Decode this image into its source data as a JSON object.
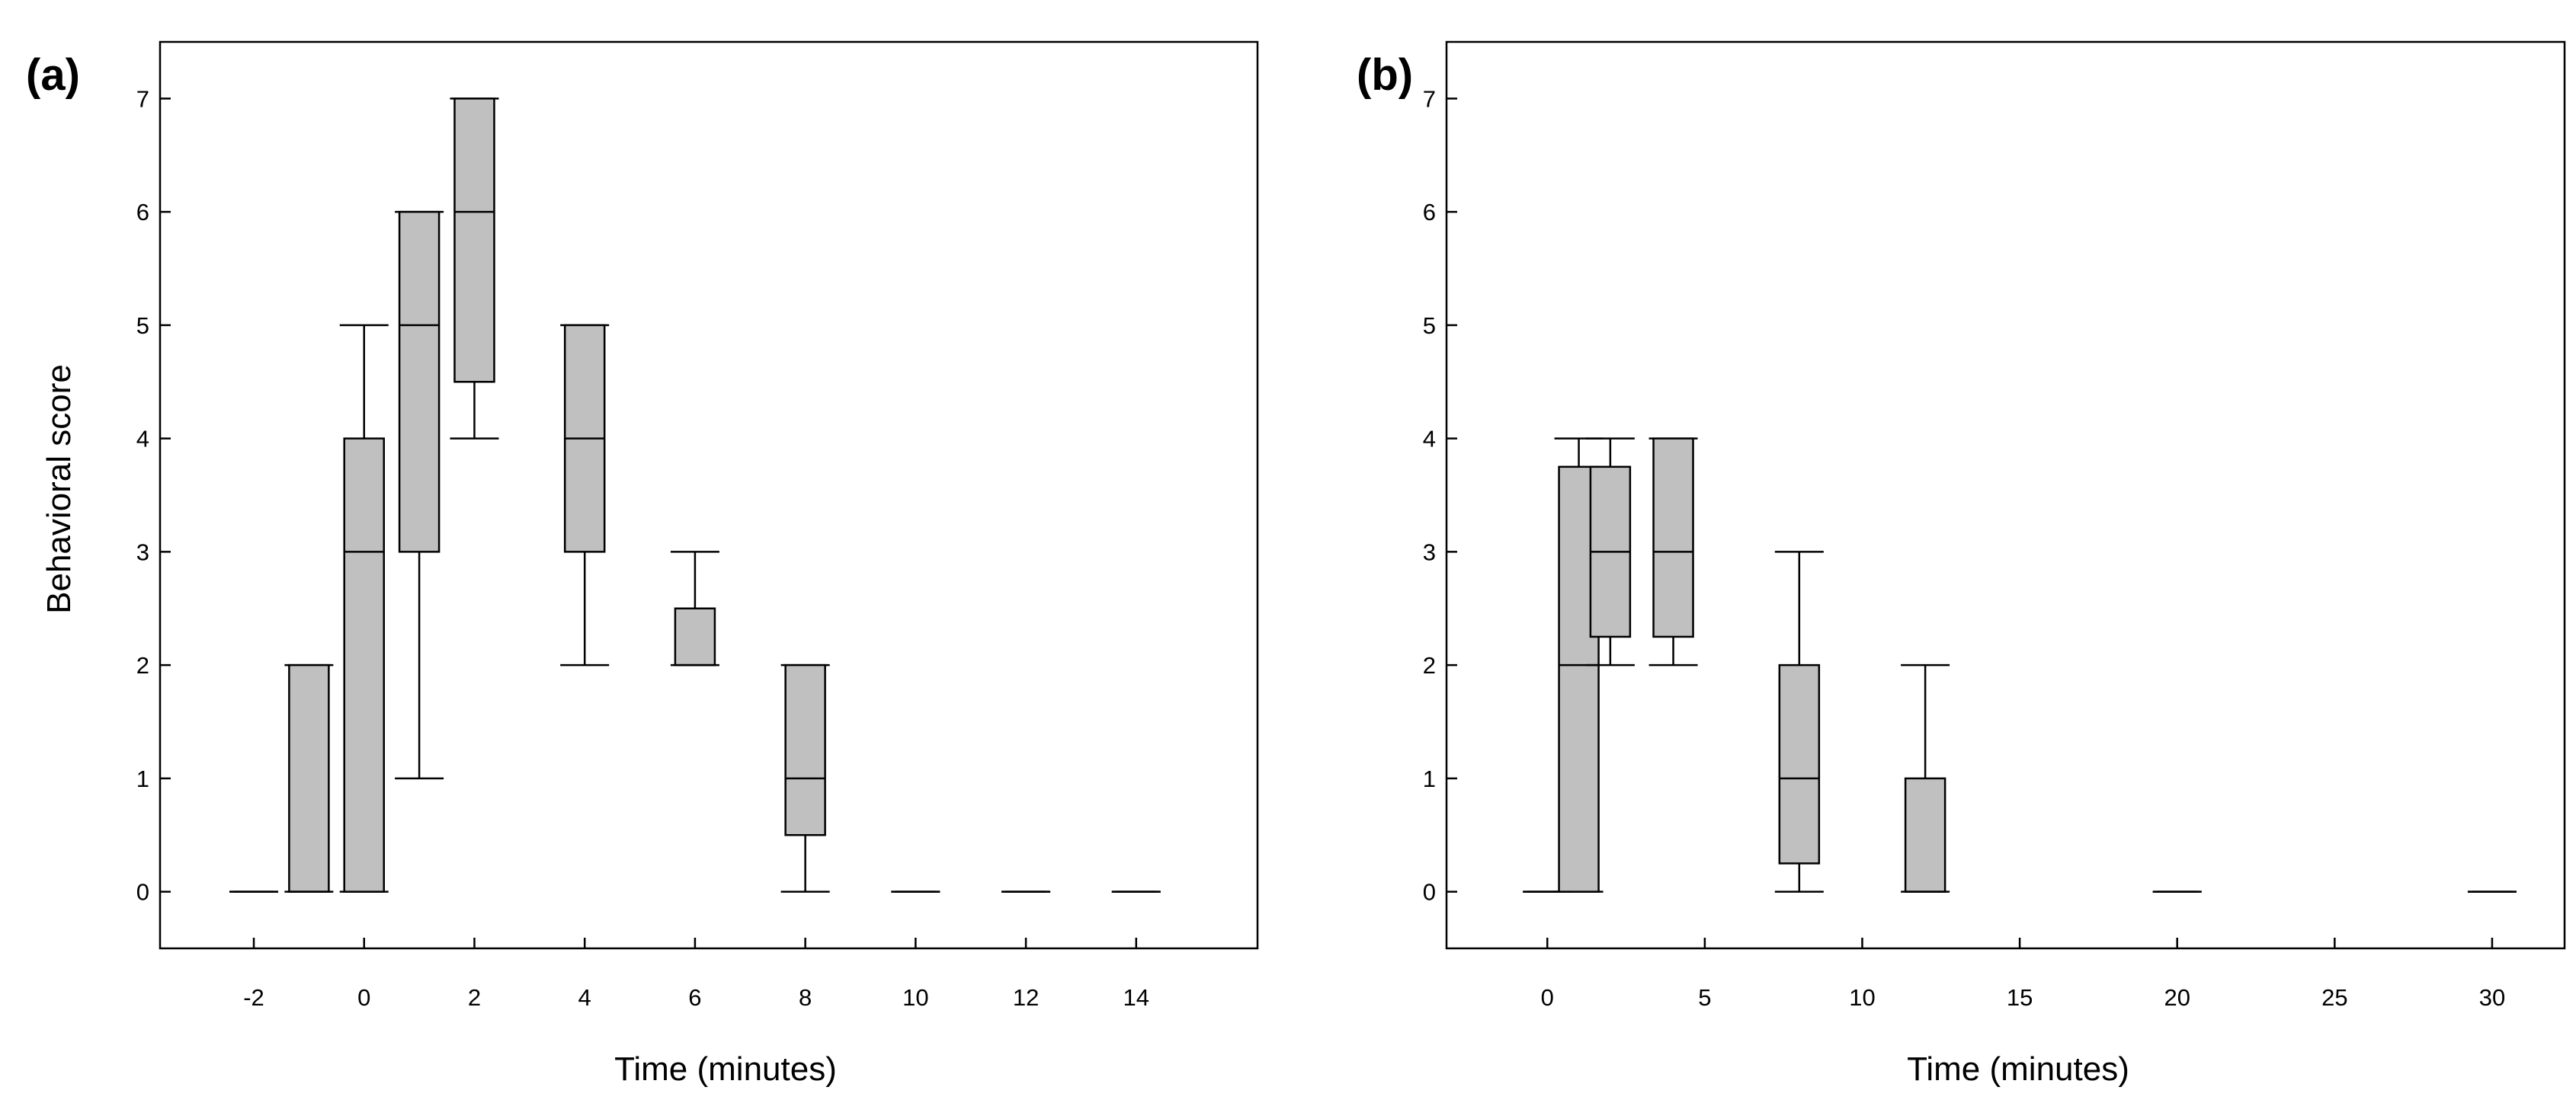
{
  "chart_data": [
    {
      "type": "box",
      "panel_label": "(a)",
      "xlabel": "Time (minutes)",
      "ylabel": "Behavioral score",
      "xlim": [
        -3.7,
        16.2
      ],
      "ylim": [
        -0.5,
        7.5
      ],
      "x_ticks": [
        -2,
        0,
        2,
        4,
        6,
        8,
        10,
        12,
        14
      ],
      "y_ticks": [
        0,
        1,
        2,
        3,
        4,
        5,
        6,
        7
      ],
      "box_color": "#c0c0c0",
      "boxes": [
        {
          "x": -2,
          "whisker_low": 0,
          "q1": 0,
          "median": 0,
          "q3": 0,
          "whisker_high": 0
        },
        {
          "x": -1,
          "whisker_low": 0,
          "q1": 0,
          "median": 0,
          "q3": 2,
          "whisker_high": 2
        },
        {
          "x": 0,
          "whisker_low": 0,
          "q1": 0,
          "median": 3,
          "q3": 4,
          "whisker_high": 5
        },
        {
          "x": 1,
          "whisker_low": 1,
          "q1": 3,
          "median": 5,
          "q3": 6,
          "whisker_high": 6
        },
        {
          "x": 2,
          "whisker_low": 4,
          "q1": 4.5,
          "median": 6,
          "q3": 7,
          "whisker_high": 7
        },
        {
          "x": 4,
          "whisker_low": 2,
          "q1": 3,
          "median": 4,
          "q3": 5,
          "whisker_high": 5
        },
        {
          "x": 6,
          "whisker_low": 2,
          "q1": 2,
          "median": 2,
          "q3": 2.5,
          "whisker_high": 3
        },
        {
          "x": 8,
          "whisker_low": 0,
          "q1": 0.5,
          "median": 1,
          "q3": 2,
          "whisker_high": 2
        },
        {
          "x": 10,
          "whisker_low": 0,
          "q1": 0,
          "median": 0,
          "q3": 0,
          "whisker_high": 0
        },
        {
          "x": 12,
          "whisker_low": 0,
          "q1": 0,
          "median": 0,
          "q3": 0,
          "whisker_high": 0
        },
        {
          "x": 14,
          "whisker_low": 0,
          "q1": 0,
          "median": 0,
          "q3": 0,
          "whisker_high": 0
        }
      ]
    },
    {
      "type": "box",
      "panel_label": "(b)",
      "xlabel": "Time (minutes)",
      "ylabel": "",
      "xlim": [
        -3.2,
        32.3
      ],
      "ylim": [
        -0.5,
        7.5
      ],
      "x_ticks": [
        0,
        5,
        10,
        15,
        20,
        25,
        30
      ],
      "y_ticks": [
        0,
        1,
        2,
        3,
        4,
        5,
        6,
        7
      ],
      "box_color": "#c0c0c0",
      "boxes": [
        {
          "x": 0,
          "whisker_low": 0,
          "q1": 0,
          "median": 0,
          "q3": 0,
          "whisker_high": 0
        },
        {
          "x": 1,
          "whisker_low": 0,
          "q1": 0,
          "median": 2,
          "q3": 3.75,
          "whisker_high": 4
        },
        {
          "x": 2,
          "whisker_low": 2,
          "q1": 2.25,
          "median": 3,
          "q3": 3.75,
          "whisker_high": 4
        },
        {
          "x": 4,
          "whisker_low": 2,
          "q1": 2.25,
          "median": 3,
          "q3": 4,
          "whisker_high": 4
        },
        {
          "x": 8,
          "whisker_low": 0,
          "q1": 0.25,
          "median": 1,
          "q3": 2,
          "whisker_high": 3
        },
        {
          "x": 12,
          "whisker_low": 0,
          "q1": 0,
          "median": 0,
          "q3": 1,
          "whisker_high": 2
        },
        {
          "x": 20,
          "whisker_low": 0,
          "q1": 0,
          "median": 0,
          "q3": 0,
          "whisker_high": 0
        },
        {
          "x": 30,
          "whisker_low": 0,
          "q1": 0,
          "median": 0,
          "q3": 0,
          "whisker_high": 0
        }
      ]
    }
  ]
}
